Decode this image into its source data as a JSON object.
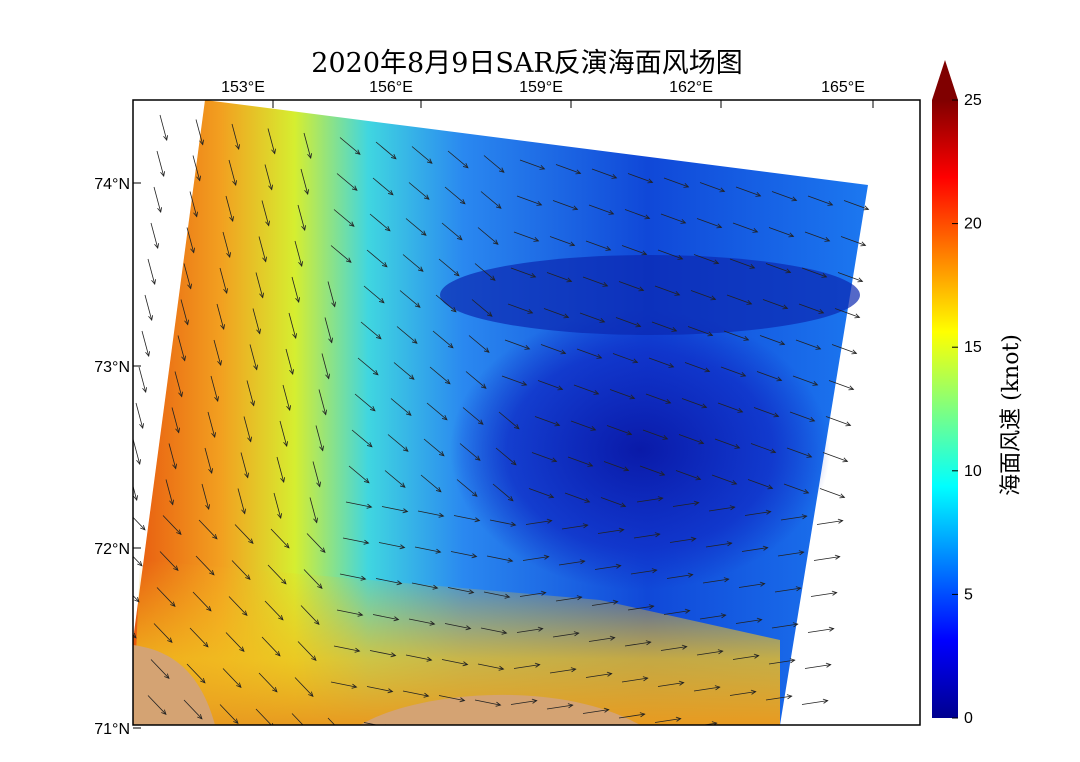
{
  "title": "2020年8月9日SAR反演海面风场图",
  "map": {
    "lon_labels": [
      "153°E",
      "156°E",
      "159°E",
      "162°E",
      "165°E"
    ],
    "lat_labels": [
      "74°N",
      "73°N",
      "72°N",
      "71°N"
    ]
  },
  "colorbar": {
    "label": "海面风速 (knot)",
    "lim": [
      0,
      25
    ],
    "ticks": [
      0,
      5,
      10,
      15,
      20,
      25
    ]
  }
}
